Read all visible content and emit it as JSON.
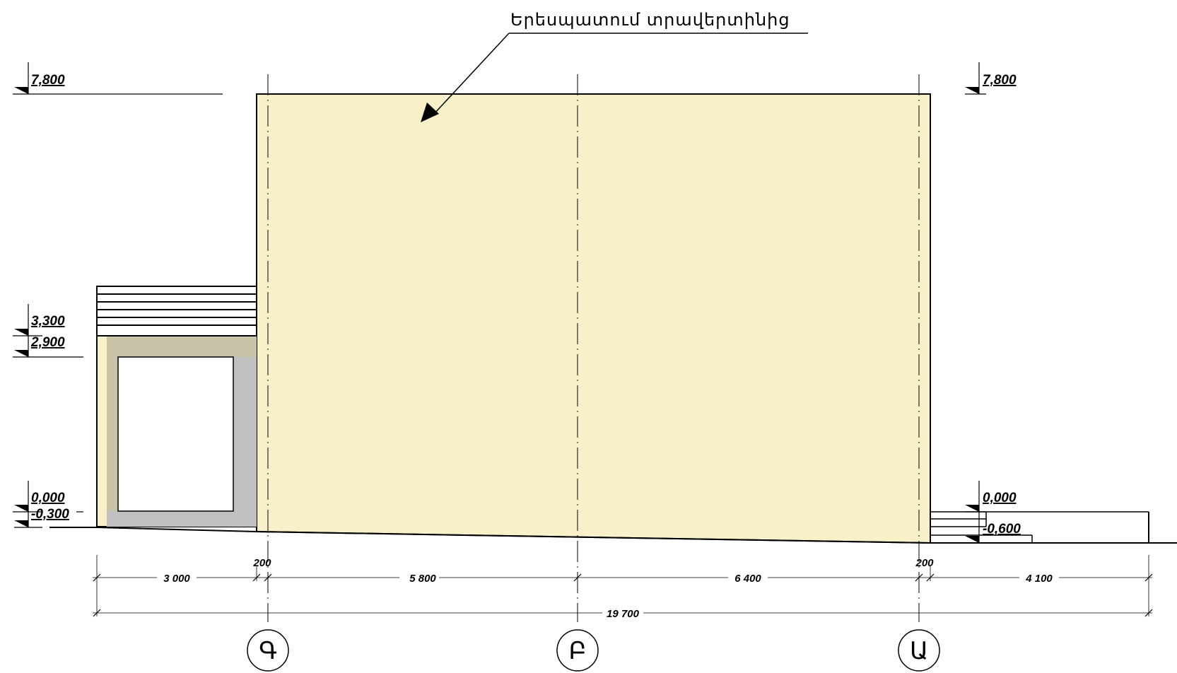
{
  "annotation": {
    "text": "Երեսպատում տրավերտինից"
  },
  "levels": {
    "top_left": "7,800",
    "top_right": "7,800",
    "canopy_top": "3,300",
    "canopy_bottom": "2,900",
    "ground_left": "0,000",
    "ground_left_low": "-0,300",
    "ground_right": "0,000",
    "ground_right_low": "-0,600"
  },
  "dimensions": {
    "gap_left": "200",
    "gap_right": "200",
    "seg1": "3 000",
    "seg2": "5 800",
    "seg3": "6 400",
    "seg4": "4 100",
    "total": "19 700"
  },
  "axes": {
    "g": "Գ",
    "b": "Բ",
    "a": "Ա"
  },
  "colors": {
    "facade": "#f8f0c8",
    "canopy_frame": "#c8c4a8",
    "canopy_side": "#c0c0c0",
    "line": "#000000"
  }
}
